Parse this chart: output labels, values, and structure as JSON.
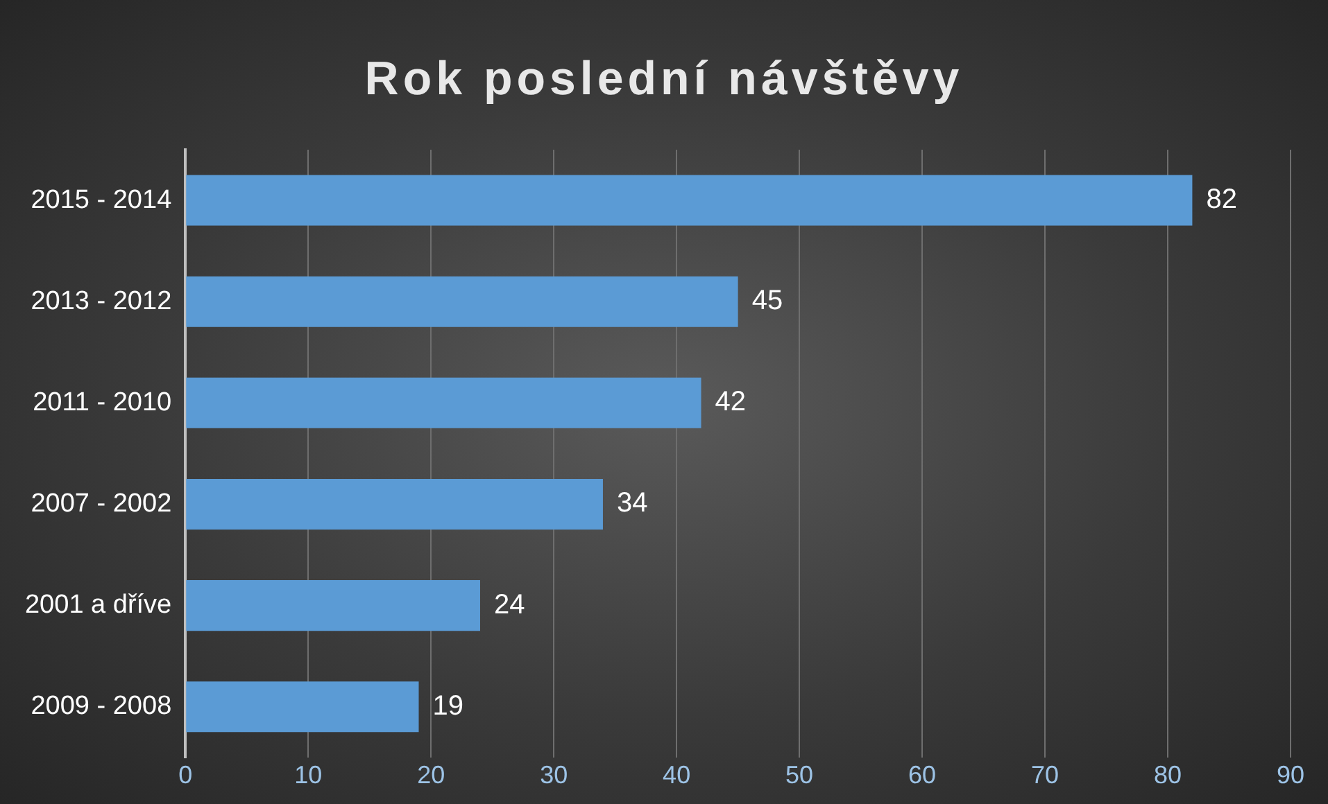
{
  "chart_data": {
    "type": "bar",
    "orientation": "horizontal",
    "title": "Rok poslední návštěvy",
    "categories": [
      "2015 - 2014",
      "2013 - 2012",
      "2011 - 2010",
      "2007 - 2002",
      "2001 a dříve",
      "2009 - 2008"
    ],
    "values": [
      82,
      45,
      42,
      34,
      24,
      19
    ],
    "color": "#5b9bd5",
    "xlim": [
      0,
      90
    ],
    "xticks": [
      0,
      10,
      20,
      30,
      40,
      50,
      60,
      70,
      80,
      90
    ],
    "grid": "x",
    "data_labels": true
  }
}
